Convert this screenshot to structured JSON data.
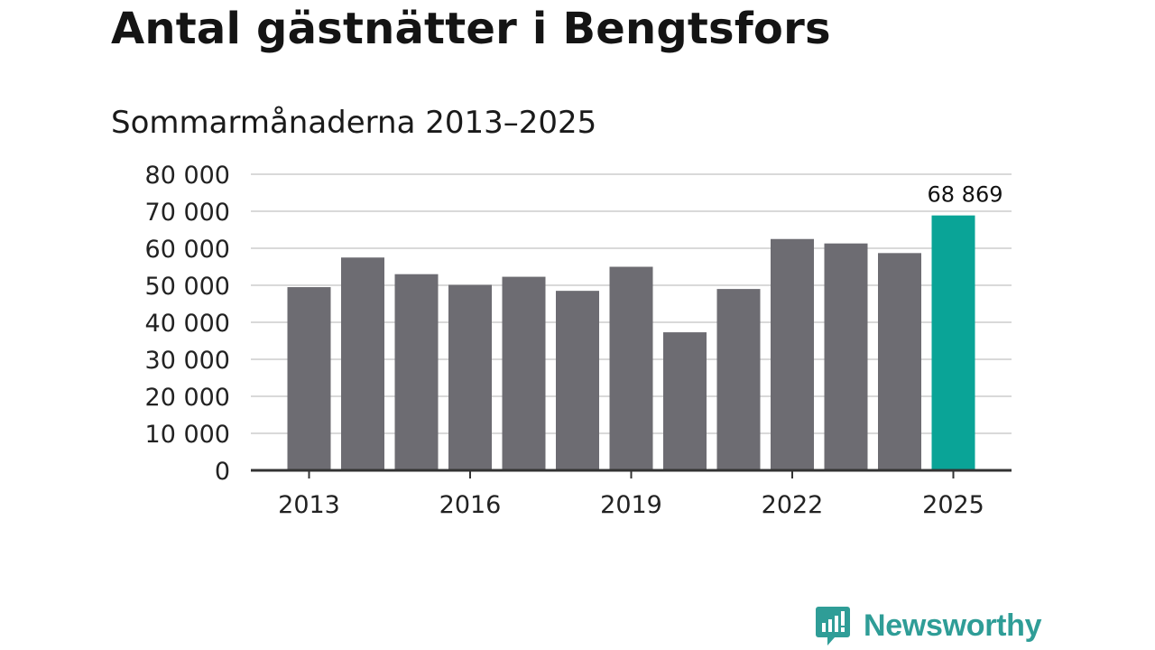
{
  "chart_data": {
    "type": "bar",
    "title": "Antal gästnätter i Bengtsfors",
    "subtitle": "Sommarmånaderna 2013–2025",
    "xlabel": "",
    "ylabel": "",
    "categories": [
      "2013",
      "2014",
      "2015",
      "2016",
      "2017",
      "2018",
      "2019",
      "2020",
      "2021",
      "2022",
      "2023",
      "2024",
      "2025"
    ],
    "values": [
      49500,
      57500,
      53000,
      50100,
      52300,
      48500,
      55000,
      37300,
      49000,
      62500,
      61300,
      58700,
      68869
    ],
    "ylim": [
      0,
      80000
    ],
    "yticks": [
      0,
      10000,
      20000,
      30000,
      40000,
      50000,
      60000,
      70000,
      80000
    ],
    "ytick_labels": [
      "0",
      "10 000",
      "20 000",
      "30 000",
      "40 000",
      "50 000",
      "60 000",
      "70 000",
      "80 000"
    ],
    "xtick_labels": [
      "2013",
      "2016",
      "2019",
      "2022",
      "2025"
    ],
    "data_labels": [
      {
        "category": "2025",
        "text": "68 869"
      }
    ],
    "grid": true,
    "colors": {
      "bar": "#6d6c72",
      "highlight": "#0aa497",
      "grid": "#d9d9d9",
      "axis": "#333333"
    }
  },
  "brand": {
    "name": "Newsworthy",
    "icon": "newsworthy-logo-icon",
    "color": "#2f9d97"
  }
}
